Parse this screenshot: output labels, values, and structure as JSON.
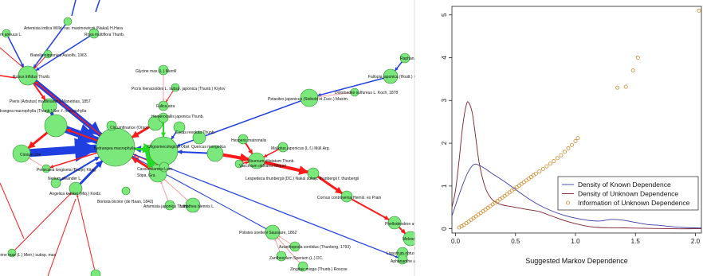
{
  "network": {
    "node_color": "#7be87b",
    "node_stroke": "#2e8b2e",
    "edge_colors": {
      "blue": "#1f3fe0",
      "red": "#ff1a1a",
      "pink": "#f7a0a0",
      "bright_green": "#22dd22"
    },
    "labels": [
      "Artemisia indica Willd. var. maximowiczii (Nakai) H.Hara",
      "tum annuus L.",
      "Rosa multiflora Thunb.",
      "Biatella nipponica Ausolfs, 1963",
      "Glycine max (L.) Merrill",
      "Picris hieracioides L. subsp. japonica (Thunb.) Krylov",
      "Rubus trifidus Thunb.",
      "Fulica atra",
      "Pieris (Arbutus) maldesaneta Manetrias, 1857",
      "ydrangea macrophylla (Thunb.) Ser. f. macrophylla",
      "Circumfinance (Orso)",
      "Cycas revoluta Thunb.",
      "Cirsium inte",
      "hydrangea macrophylla",
      "Persicaria longiseta (Bruijn) Kitag.",
      "Nerium oleander L.",
      "Angelica keiskei (Miq.) Koidz.",
      "Polistes snelleni Saussure, 1862",
      "Petasites japonicus (Siebold et Zucc.) Maxim.",
      "Fallopia japonica (Houtt.) Ronse Decr. var.",
      "Raphanus",
      "Dolomedes sulfureus L. Koch, 1878",
      "Hesperis matronalis",
      "Mallotus japonicus (L.f.) Müll.Arg.",
      "Viburnum dilatatum Thunb.",
      "Vaccinium oldhamii Miquel",
      "Lespedeza thunbergii (DC.) Nakai subsp. thunbergii f. thunbergii",
      "Cornus controversa Hemsl. ex Prain",
      "Phellodendron amurense Ru",
      "Melosma myrianth",
      "Ligustrum obtusifolium Siebold et Z",
      "Aphananthe aspe",
      "Quer",
      "Artemisia japonica Thunb.",
      "Lithothea biennis L.",
      "Bonista bicolor (de Haan, 1842)",
      "Azanthopoda sordidus (Thunberg, 1793)",
      "Zanthoxylum Sperium (L.) DC.",
      "Zingiber mioga (Thunb.) Roscoe",
      "Oligosmecological Obst",
      "Cassia siamea Lam.",
      "Stipa, Gra",
      "Hemerocallis japonica Thunb.",
      "Quercus mongolica",
      "crine max (L.) Merr.) subsp. max"
    ]
  },
  "chart_data": {
    "type": "line",
    "xlabel": "Suggested Markov Dependence",
    "ylabel": "",
    "xlim": [
      -0.03,
      2.05
    ],
    "ylim": [
      -0.1,
      5.2
    ],
    "xticks": [
      "0.0",
      "0.5",
      "1.0",
      "1.5",
      "2.0"
    ],
    "yticks": [
      "0",
      "1",
      "2",
      "3",
      "4",
      "5"
    ],
    "grid": false,
    "legend_position": "center-right",
    "series": [
      {
        "name": "Density of Known Dependence",
        "kind": "line",
        "color": "#3b3ba8",
        "x": [
          -0.03,
          0.0,
          0.05,
          0.1,
          0.15,
          0.2,
          0.25,
          0.3,
          0.4,
          0.5,
          0.6,
          0.7,
          0.8,
          0.9,
          1.0,
          1.1,
          1.2,
          1.3,
          1.4,
          1.5,
          1.6,
          1.7,
          1.8,
          1.9,
          2.0,
          2.05
        ],
        "y": [
          0.3,
          0.55,
          0.95,
          1.3,
          1.5,
          1.48,
          1.4,
          1.3,
          1.12,
          0.92,
          0.72,
          0.55,
          0.42,
          0.32,
          0.25,
          0.2,
          0.18,
          0.22,
          0.2,
          0.15,
          0.1,
          0.08,
          0.05,
          0.03,
          0.02,
          0.02
        ]
      },
      {
        "name": "Density of Unknown Dependence",
        "kind": "line",
        "color": "#7a1f2b",
        "x": [
          -0.03,
          0.0,
          0.03,
          0.06,
          0.09,
          0.11,
          0.14,
          0.17,
          0.2,
          0.25,
          0.3,
          0.35,
          0.4,
          0.5,
          0.6,
          0.7,
          0.8,
          0.9,
          1.0,
          1.1,
          1.2,
          1.4,
          1.6,
          1.8,
          2.0,
          2.05
        ],
        "y": [
          0.5,
          0.9,
          1.6,
          2.4,
          2.9,
          2.95,
          2.7,
          2.1,
          1.5,
          0.95,
          0.7,
          0.6,
          0.55,
          0.5,
          0.45,
          0.4,
          0.3,
          0.2,
          0.12,
          0.06,
          0.03,
          0.02,
          0.01,
          0.0,
          0.0,
          0.0
        ]
      },
      {
        "name": "Information of Unknown Dependence",
        "kind": "points",
        "color": "#d08a2c",
        "x": [
          0.03,
          0.05,
          0.07,
          0.09,
          0.11,
          0.13,
          0.15,
          0.17,
          0.19,
          0.21,
          0.23,
          0.25,
          0.27,
          0.29,
          0.31,
          0.33,
          0.35,
          0.37,
          0.39,
          0.41,
          0.43,
          0.45,
          0.47,
          0.49,
          0.51,
          0.53,
          0.55,
          0.57,
          0.59,
          0.61,
          0.63,
          0.65,
          0.67,
          0.7,
          0.73,
          0.76,
          0.79,
          0.82,
          0.85,
          0.88,
          0.91,
          0.94,
          0.97,
          1.0,
          1.02,
          1.35,
          1.42,
          1.48,
          1.52,
          2.03
        ],
        "y": [
          0.03,
          0.06,
          0.09,
          0.13,
          0.17,
          0.21,
          0.25,
          0.29,
          0.33,
          0.37,
          0.41,
          0.45,
          0.49,
          0.53,
          0.57,
          0.61,
          0.65,
          0.69,
          0.73,
          0.77,
          0.81,
          0.85,
          0.89,
          0.93,
          0.97,
          1.01,
          1.05,
          1.09,
          1.13,
          1.17,
          1.21,
          1.25,
          1.29,
          1.34,
          1.4,
          1.46,
          1.52,
          1.58,
          1.65,
          1.72,
          1.8,
          1.88,
          1.96,
          2.05,
          2.12,
          3.3,
          3.32,
          3.7,
          4.0,
          5.1
        ]
      }
    ]
  }
}
